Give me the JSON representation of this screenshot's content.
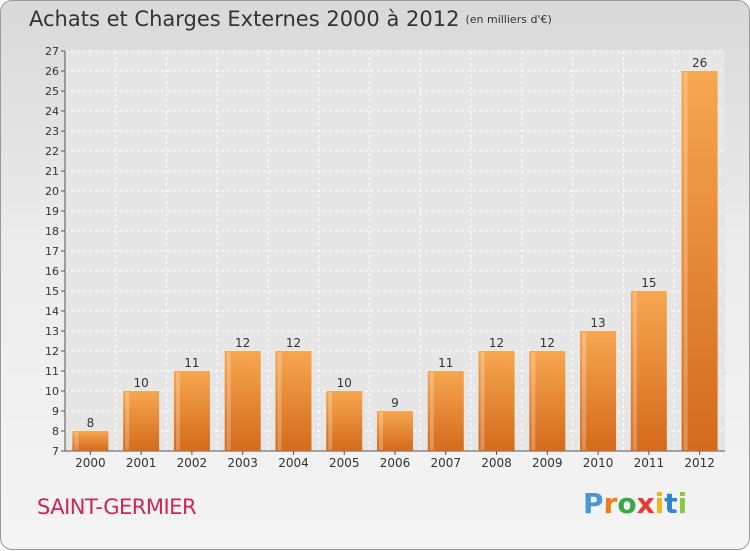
{
  "header": {
    "title": "Achats et Charges Externes 2000 à 2012",
    "unit": "(en milliers d'€)"
  },
  "footer": {
    "place": "SAINT-GERMIER",
    "logo": [
      "P",
      "r",
      "o",
      "x",
      "i",
      "t",
      "i"
    ],
    "logo_colors": [
      "#4a98d2",
      "#f07b1d",
      "#3aa845",
      "#e53935",
      "#f2b21b",
      "#2d87c8",
      "#8dc63f"
    ]
  },
  "chart_data": {
    "type": "bar",
    "title": "Achats et Charges Externes 2000 à 2012",
    "subtitle": "(en milliers d'€)",
    "categories": [
      "2000",
      "2001",
      "2002",
      "2003",
      "2004",
      "2005",
      "2006",
      "2007",
      "2008",
      "2009",
      "2010",
      "2011",
      "2012"
    ],
    "values": [
      8,
      10,
      11,
      12,
      12,
      10,
      9,
      11,
      12,
      12,
      13,
      15,
      26
    ],
    "ylim": [
      7,
      27
    ],
    "yticks": [
      7,
      8,
      9,
      10,
      11,
      12,
      13,
      14,
      15,
      16,
      17,
      18,
      19,
      20,
      21,
      22,
      23,
      24,
      25,
      26,
      27
    ],
    "grid": true,
    "bar_color": "#f0963a",
    "bar_color_dark": "#d0661a"
  }
}
